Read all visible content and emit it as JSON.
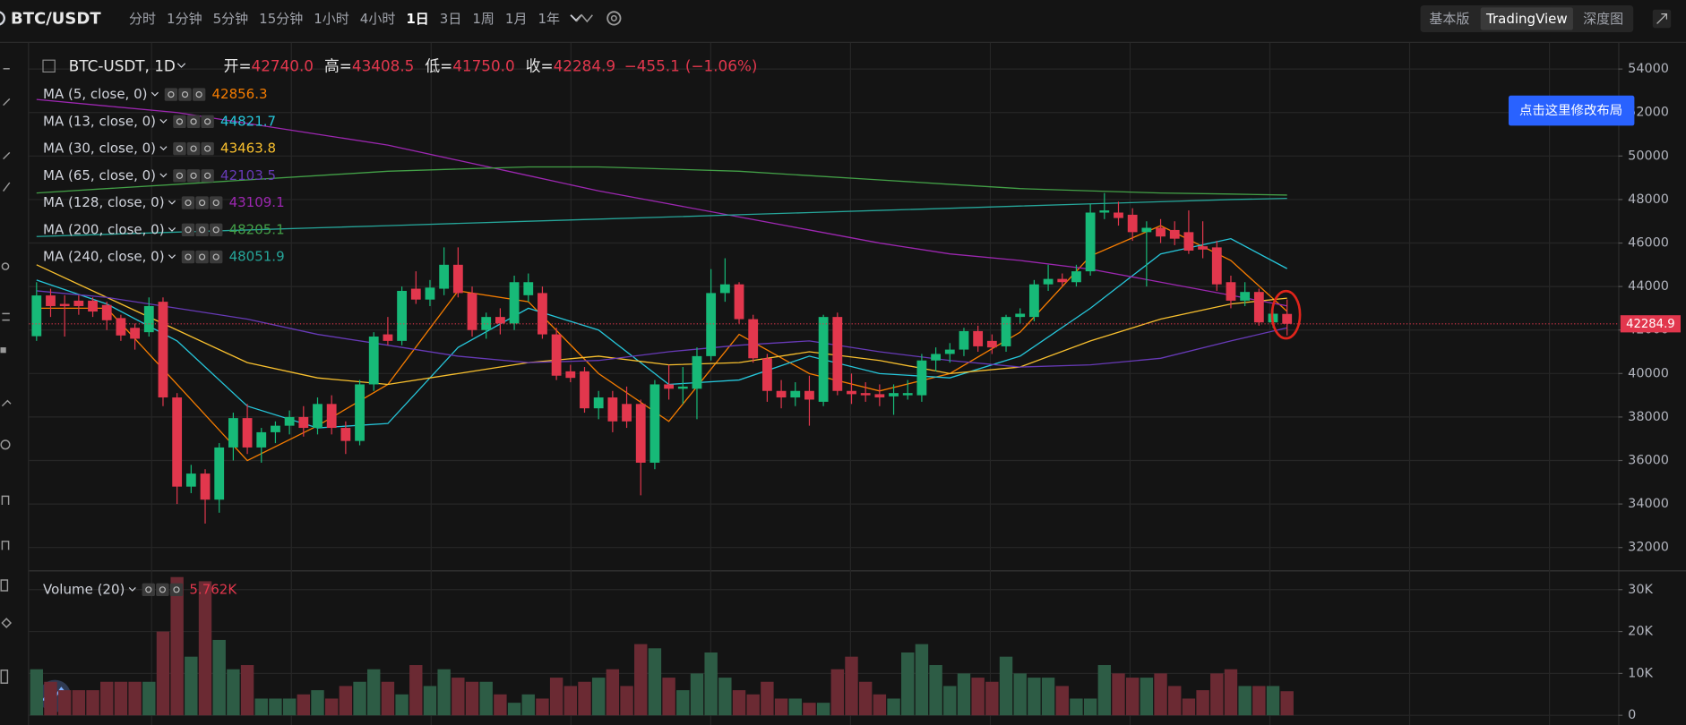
{
  "header": {
    "pair": "BTC/USDT",
    "intervals": [
      "分时",
      "1分钟",
      "5分钟",
      "15分钟",
      "1小时",
      "4小时",
      "1日",
      "3日",
      "1周",
      "1月",
      "1年"
    ],
    "active_interval": 6,
    "views": [
      "基本版",
      "TradingView",
      "深度图"
    ],
    "active_view": 1
  },
  "overlay": {
    "tooltip": "点击这里修改布局"
  },
  "chart_data": {
    "type": "candlestick",
    "symbol": "BTC-USDT, 1D",
    "ohlc_labels": [
      "开=",
      "高=",
      "低=",
      "收="
    ],
    "last_ohlc": {
      "values": [
        42740,
        43408.5,
        41750,
        42284.9
      ],
      "value_labels": [
        "42740.0",
        "43408.5",
        "41750.0",
        "42284.9"
      ]
    },
    "change": {
      "values": [
        -455.1,
        -1.06
      ],
      "value_labels": [
        "−455.1",
        "(−1.06%)"
      ]
    },
    "up_color": "#17b978",
    "down_color": "#e2374d",
    "volume_up_color": "#2d5c45",
    "volume_down_color": "#6b2a33",
    "open": [
      41716,
      43590,
      43200,
      43350,
      43350,
      43150,
      42550,
      42100,
      41900,
      43300,
      38900,
      34800,
      35400,
      34200,
      36600,
      37950,
      36600,
      37300,
      37600,
      38000,
      37500,
      38600,
      37500,
      36900,
      39500,
      41800,
      41500,
      43900,
      43400,
      43900,
      45000,
      43700,
      42000,
      42600,
      42300,
      43600,
      43700,
      41800,
      40100,
      40100,
      38400,
      38900,
      38600,
      38600,
      35900,
      39500,
      39300,
      39300,
      40800,
      43700,
      44100,
      42500,
      40700,
      39200,
      38900,
      39200,
      38700,
      42600,
      39200,
      39100,
      39050,
      38950,
      39000,
      39000,
      40600,
      40900,
      41100,
      41950,
      41500,
      41250,
      42600,
      42600,
      44100,
      44350,
      44200,
      44700,
      47400,
      47400,
      47300,
      46500,
      46700,
      46600,
      46500,
      45850,
      45800,
      44200,
      43350,
      43750,
      42350,
      42740
    ],
    "high": [
      44200,
      43900,
      43600,
      43600,
      43500,
      43300,
      42700,
      42300,
      43500,
      43500,
      39100,
      35800,
      35600,
      36800,
      38200,
      38600,
      37500,
      37800,
      38300,
      38500,
      38900,
      39000,
      37800,
      39700,
      41900,
      42600,
      44000,
      44700,
      44300,
      45800,
      45800,
      44000,
      42800,
      43000,
      44500,
      44600,
      44000,
      42100,
      40400,
      40300,
      39200,
      39200,
      39400,
      38800,
      39700,
      40400,
      40300,
      41200,
      44800,
      45300,
      44200,
      42700,
      40900,
      39700,
      39600,
      39900,
      42700,
      42800,
      40000,
      39600,
      39500,
      39500,
      39700,
      40900,
      41200,
      41400,
      42100,
      42200,
      41800,
      42700,
      43000,
      44300,
      45000,
      44600,
      45000,
      47800,
      48300,
      47900,
      47600,
      47000,
      47100,
      47000,
      47500,
      47000,
      46100,
      44500,
      44200,
      43900,
      43000,
      43408.5
    ],
    "low": [
      41500,
      42600,
      41700,
      42700,
      42600,
      42000,
      41500,
      41100,
      41700,
      38500,
      34000,
      34500,
      33100,
      33600,
      36000,
      36300,
      35900,
      36800,
      37200,
      37100,
      37200,
      37200,
      36300,
      36700,
      39200,
      41300,
      41300,
      43200,
      43100,
      43600,
      43500,
      41700,
      41600,
      41800,
      42000,
      43300,
      41600,
      39700,
      39600,
      38200,
      37900,
      37300,
      37500,
      34400,
      35600,
      38800,
      38600,
      37900,
      40600,
      43300,
      42300,
      40500,
      38700,
      38400,
      38500,
      37600,
      38500,
      39000,
      38600,
      38700,
      38500,
      38100,
      38800,
      38700,
      40100,
      40500,
      40800,
      41000,
      40900,
      41000,
      42300,
      42400,
      43800,
      44000,
      44000,
      44500,
      47100,
      46800,
      46100,
      44000,
      46000,
      45900,
      45500,
      45300,
      43800,
      43000,
      43100,
      42200,
      42100,
      41750
    ],
    "close": [
      43590,
      43100,
      43100,
      43100,
      42850,
      42450,
      41750,
      41600,
      43100,
      38900,
      34800,
      35400,
      34200,
      36600,
      37950,
      36600,
      37300,
      37600,
      38000,
      37500,
      38600,
      37500,
      36900,
      39500,
      41700,
      41500,
      43800,
      43400,
      43950,
      45000,
      43700,
      42000,
      42600,
      42300,
      44200,
      44200,
      41800,
      39900,
      39800,
      38400,
      38900,
      37800,
      37800,
      35900,
      39500,
      39300,
      39400,
      40800,
      43700,
      44100,
      42500,
      40700,
      39200,
      38900,
      39200,
      38800,
      42600,
      39200,
      39050,
      39000,
      38900,
      39100,
      39100,
      40600,
      40900,
      41100,
      41950,
      41250,
      41200,
      42600,
      42750,
      44100,
      44350,
      44200,
      44700,
      47400,
      47500,
      47150,
      46500,
      46700,
      46300,
      46200,
      45650,
      45700,
      44100,
      43350,
      43750,
      42350,
      42750,
      42284.9
    ],
    "ylim": [
      31000,
      55100
    ],
    "yticks": [
      32000,
      34000,
      36000,
      38000,
      40000,
      42000,
      44000,
      46000,
      48000,
      50000,
      52000,
      54000
    ],
    "grid": true,
    "ma_x": [
      0,
      5,
      10,
      15,
      20,
      25,
      30,
      35,
      40,
      45,
      50,
      55,
      60,
      65,
      70,
      75,
      80,
      85,
      89
    ],
    "ma": [
      {
        "name": "MA (5, close, 0)",
        "color": "#f57c00",
        "last": 42856.3,
        "values": [
          43000,
          43000,
          39500,
          36000,
          37600,
          39500,
          43800,
          43300,
          40000,
          37800,
          41800,
          40000,
          39200,
          40000,
          41900,
          45400,
          46800,
          45200,
          42856.3
        ]
      },
      {
        "name": "MA (13, close, 0)",
        "color": "#26c6da",
        "last": 44821.7,
        "values": [
          44300,
          43200,
          41500,
          38500,
          37500,
          37700,
          41200,
          43000,
          42000,
          39500,
          39700,
          40800,
          40000,
          39800,
          40800,
          43000,
          45500,
          46200,
          44821.7
        ]
      },
      {
        "name": "MA (30, close, 0)",
        "color": "#f9c02e",
        "last": 43463.8,
        "values": [
          45000,
          43500,
          42000,
          40500,
          39800,
          39500,
          40000,
          40500,
          40800,
          40400,
          40500,
          41000,
          40600,
          40000,
          40300,
          41500,
          42500,
          43200,
          43463.8
        ]
      },
      {
        "name": "MA (65, close, 0)",
        "color": "#673ab7",
        "last": 42103.5,
        "values": [
          43800,
          43500,
          43000,
          42500,
          41800,
          41300,
          40800,
          40500,
          40600,
          41000,
          41300,
          41500,
          41000,
          40600,
          40300,
          40400,
          40700,
          41500,
          42103.5
        ]
      },
      {
        "name": "MA (128, close, 0)",
        "color": "#9c27b0",
        "last": 43109.1,
        "values": [
          52600,
          52300,
          52000,
          51500,
          51000,
          50500,
          49800,
          49100,
          48400,
          47800,
          47200,
          46600,
          46000,
          45500,
          45200,
          44800,
          44200,
          43600,
          43109.1
        ]
      },
      {
        "name": "MA (200, close, 0)",
        "color": "#43a047",
        "last": 48205.1,
        "values": [
          48300,
          48500,
          48700,
          48900,
          49100,
          49300,
          49400,
          49500,
          49500,
          49400,
          49300,
          49100,
          48900,
          48700,
          48500,
          48400,
          48300,
          48250,
          48205.1
        ]
      },
      {
        "name": "MA (240, close, 0)",
        "color": "#26a69a",
        "last": 48051.9,
        "values": [
          46300,
          46400,
          46500,
          46600,
          46700,
          46800,
          46900,
          47000,
          47100,
          47200,
          47300,
          47400,
          47500,
          47600,
          47700,
          47800,
          47900,
          48000,
          48051.9
        ]
      }
    ],
    "volume_name": "Volume (20)",
    "volume_label": "5.762K",
    "volume": [
      11,
      8,
      6,
      6,
      6,
      8,
      8,
      8,
      8,
      20,
      33,
      14,
      32,
      18,
      11,
      12,
      4,
      4,
      4,
      5,
      6,
      4,
      7,
      8,
      11,
      8,
      5,
      12,
      7,
      11,
      9,
      8,
      8,
      5,
      3,
      5,
      4,
      9,
      7,
      8,
      9,
      11,
      7,
      17,
      16,
      9,
      6,
      10,
      15,
      9,
      6,
      5,
      8,
      4,
      4,
      3,
      3,
      11,
      14,
      8,
      5,
      4,
      15,
      17,
      12,
      7,
      10,
      9,
      8,
      14,
      10,
      9,
      9,
      7,
      4,
      4,
      12,
      10,
      9,
      9,
      10,
      7,
      4,
      6,
      10,
      11,
      7,
      7,
      7,
      5.762
    ],
    "vlim": [
      0,
      32.3
    ],
    "vticks": [
      0,
      {
        "value": 10,
        "label": "10K"
      },
      {
        "value": 20,
        "label": "20K"
      },
      {
        "value": 30,
        "label": "30K"
      }
    ]
  }
}
